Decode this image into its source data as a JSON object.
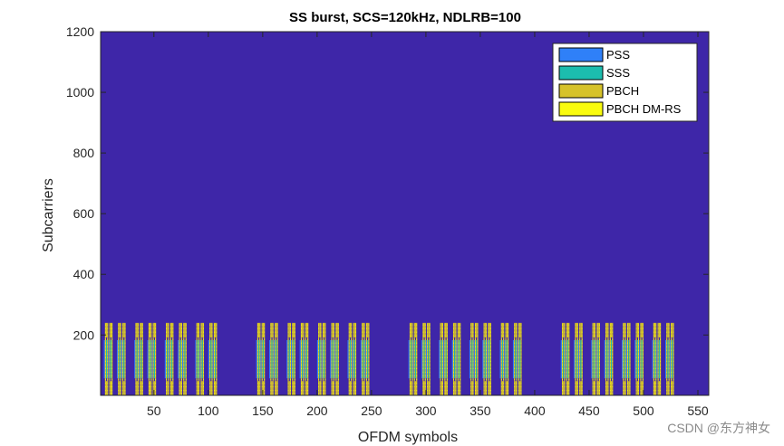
{
  "chart_data": {
    "type": "heatmap",
    "title": "SS burst, SCS=120kHz, NDLRB=100",
    "xlabel": "OFDM symbols",
    "ylabel": "Subcarriers",
    "xlim": [
      1,
      560
    ],
    "ylim": [
      1,
      1200
    ],
    "xticks": [
      50,
      100,
      150,
      200,
      250,
      300,
      350,
      400,
      450,
      500,
      550
    ],
    "yticks": [
      200,
      400,
      600,
      800,
      1000,
      1200
    ],
    "grid": false,
    "legend_position": "top-right",
    "background_color": "#3e26a8",
    "legend": [
      {
        "name": "PSS",
        "color": "#2f80f8"
      },
      {
        "name": "SSS",
        "color": "#1cbdae"
      },
      {
        "name": "PBCH",
        "color": "#d6c229"
      },
      {
        "name": "PBCH DM-RS",
        "color": "#f9fb0e"
      }
    ],
    "ssb_start_symbols": [
      4,
      8,
      16,
      20,
      32,
      36,
      44,
      48,
      60,
      64,
      72,
      76,
      88,
      92,
      100,
      104,
      144,
      148,
      156,
      160,
      172,
      176,
      184,
      188,
      200,
      204,
      212,
      216,
      228,
      232,
      240,
      244,
      284,
      288,
      296,
      300,
      312,
      316,
      324,
      328,
      340,
      344,
      352,
      356,
      368,
      372,
      380,
      384,
      424,
      428,
      436,
      440,
      452,
      456,
      464,
      468,
      480,
      484,
      492,
      496,
      508,
      512,
      520,
      524
    ],
    "ssb_symbols": 4,
    "ssb_subcarrier_range": [
      1,
      240
    ],
    "pss_sss_subcarrier_range": [
      57,
      183
    ]
  },
  "watermark": "CSDN @东方神女"
}
